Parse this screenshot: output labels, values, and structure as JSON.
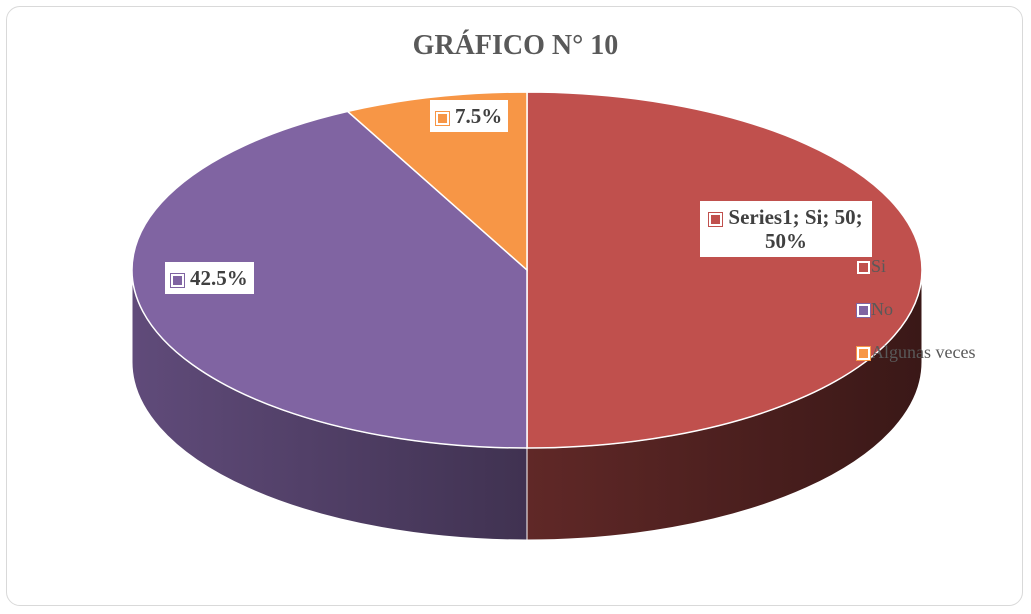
{
  "chart_data": {
    "type": "pie",
    "title": "GRÁFICO N° 10",
    "categories": [
      "Si",
      "No",
      "Algunas veces"
    ],
    "values": [
      50,
      42.5,
      7.5
    ],
    "value_labels": [
      "Series1; Si; 50; 50%",
      "42.5%",
      "7.5%"
    ],
    "colors": [
      "#c0504d",
      "#8064a2",
      "#f79646"
    ],
    "legend": "right"
  }
}
